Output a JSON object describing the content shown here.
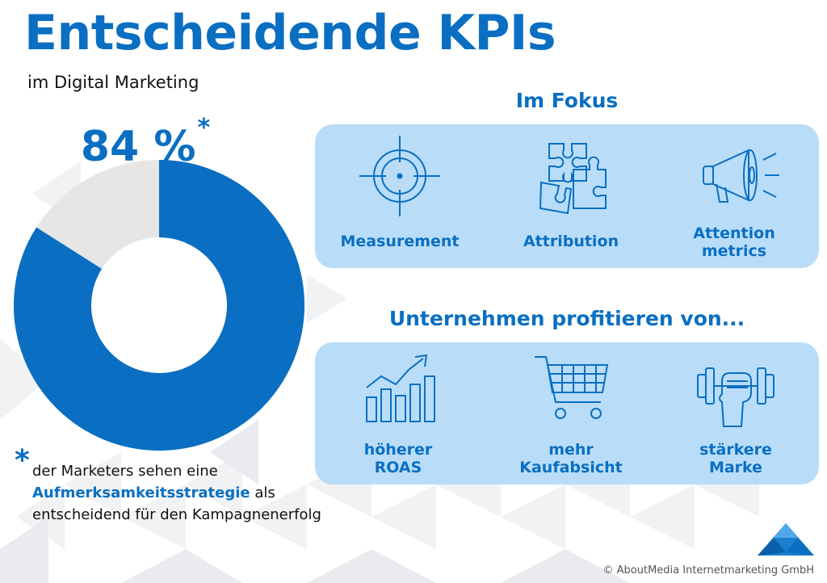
{
  "header": {
    "title": "Entscheidende KPIs",
    "subtitle": "im Digital Marketing"
  },
  "stat": {
    "value": "84 %",
    "asterisk": "*",
    "percent": 84,
    "color_filled": "#0a6fc2",
    "color_rest": "#e6e6e6"
  },
  "footnote": {
    "asterisk": "*",
    "text_before": "der Marketers sehen eine",
    "highlight": "Aufmerksamkeitsstrategie",
    "text_after": "als",
    "line3": "entscheidend für den Kampagnenerfolg"
  },
  "focus": {
    "title": "Im Fokus",
    "items": [
      {
        "label": "Measurement",
        "icon": "crosshair-icon"
      },
      {
        "label": "Attribution",
        "icon": "puzzle-icon"
      },
      {
        "label_line1": "Attention",
        "label_line2": "metrics",
        "icon": "megaphone-icon"
      }
    ]
  },
  "benefits": {
    "title": "Unternehmen profitieren von...",
    "items": [
      {
        "label_line1": "höherer",
        "label_line2": "ROAS",
        "icon": "growth-chart-icon"
      },
      {
        "label_line1": "mehr",
        "label_line2": "Kaufabsicht",
        "icon": "shopping-cart-icon"
      },
      {
        "label_line1": "stärkere",
        "label_line2": "Marke",
        "icon": "dumbbell-icon"
      }
    ]
  },
  "colors": {
    "accent": "#0a6fc2",
    "panel": "#b9ddf8"
  },
  "copyright": "© AboutMedia Internetmarketing GmbH"
}
